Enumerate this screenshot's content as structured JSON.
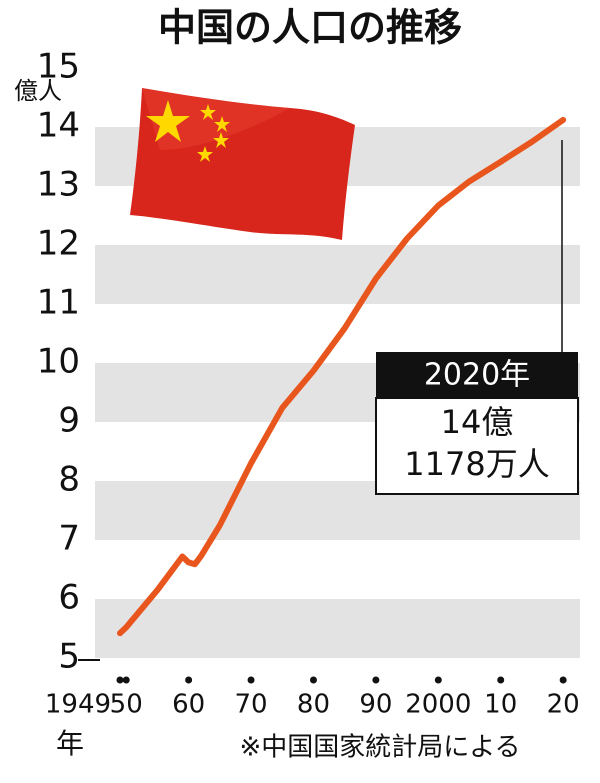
{
  "chart_data": {
    "type": "line",
    "title": "中国の人口の推移",
    "y_unit": "億人",
    "x_unit": "年",
    "source": "※中国国家統計局による",
    "x": [
      1949,
      1950,
      1955,
      1959,
      1960,
      1961,
      1962,
      1965,
      1970,
      1975,
      1980,
      1985,
      1990,
      1995,
      2000,
      2005,
      2010,
      2015,
      2020
    ],
    "values": [
      5.42,
      5.52,
      6.15,
      6.72,
      6.62,
      6.59,
      6.73,
      7.25,
      8.3,
      9.24,
      9.87,
      10.59,
      11.43,
      12.11,
      12.67,
      13.08,
      13.41,
      13.75,
      14.12
    ],
    "color": "#e8561e",
    "xlim": [
      1945,
      2022.7
    ],
    "ylim": [
      5,
      15
    ],
    "yticks": [
      5,
      6,
      7,
      8,
      9,
      10,
      11,
      12,
      13,
      14,
      15
    ],
    "xticks": [
      1949,
      {
        "value": 1950,
        "label": "50"
      },
      {
        "value": 1960,
        "label": "60"
      },
      {
        "value": 1970,
        "label": "70"
      },
      {
        "value": 1980,
        "label": "80"
      },
      {
        "value": 1990,
        "label": "90"
      },
      2000,
      {
        "value": 2010,
        "label": "10"
      },
      {
        "value": 2020,
        "label": "20"
      }
    ],
    "grid": "bands",
    "annotation": {
      "header": "2020年",
      "lines": [
        "14億",
        "1178万人"
      ]
    }
  }
}
